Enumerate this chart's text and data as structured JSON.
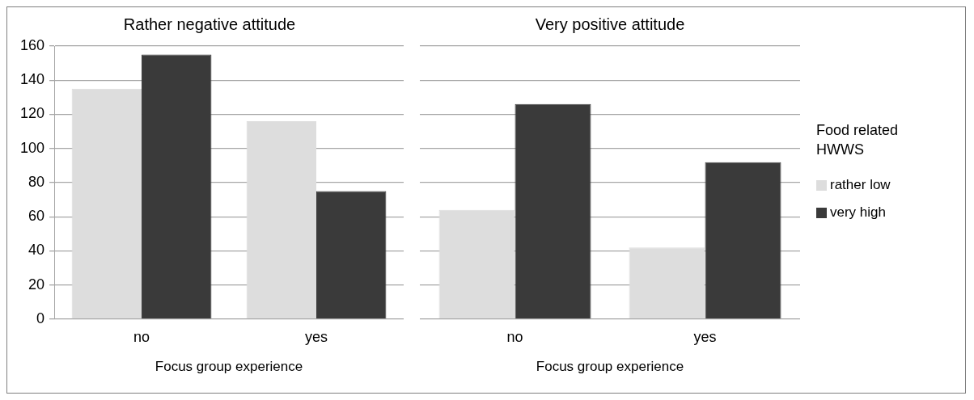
{
  "chart_data": [
    {
      "type": "bar",
      "title": "Rather negative attitude",
      "xlabel": "Focus group experience",
      "categories": [
        "no",
        "yes"
      ],
      "series": [
        {
          "color": "#dddddd",
          "values": [
            135,
            116
          ]
        },
        {
          "color": "#3a3a3a",
          "values": [
            155,
            75
          ]
        }
      ],
      "ylim": [
        0,
        160
      ],
      "yticks": [
        0,
        20,
        40,
        60,
        80,
        100,
        120,
        140,
        160
      ],
      "grid": "y",
      "legend": false
    },
    {
      "type": "bar",
      "title": "Very positive attitude",
      "xlabel": "Focus group experience",
      "categories": [
        "no",
        "yes"
      ],
      "legend_title": "Food related HWWS",
      "series": [
        {
          "name": "rather low",
          "color": "#dddddd",
          "values": [
            64,
            42
          ]
        },
        {
          "name": "very high",
          "color": "#3a3a3a",
          "values": [
            126,
            92
          ]
        }
      ],
      "ylim": [
        0,
        160
      ],
      "yticks": [
        0,
        20,
        40,
        60,
        80,
        100,
        120,
        140,
        160
      ],
      "grid": "y",
      "legend": "right",
      "tick_labels": "x"
    }
  ]
}
